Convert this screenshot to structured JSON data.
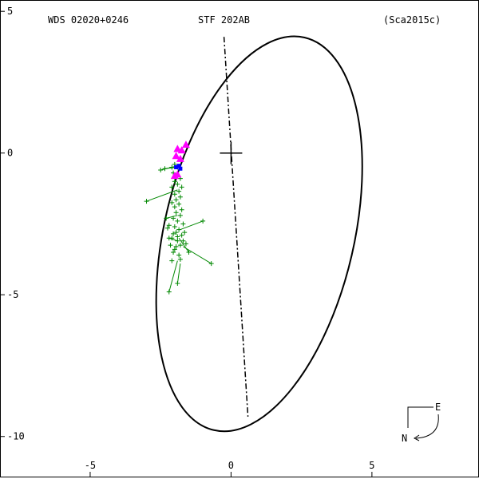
{
  "header": {
    "left": "WDS 02020+0246",
    "center": "STF 202AB",
    "right": "(Sca2015c)"
  },
  "compass": {
    "east": "E",
    "north": "N"
  },
  "colors": {
    "ellipse": "#000000",
    "observations": "#008800",
    "interferometric": "#0000ff",
    "recent": "#ff00ff"
  },
  "chart_data": {
    "type": "scatter",
    "title": "",
    "xlabel": "",
    "ylabel": "",
    "xlim": [
      -8.2,
      8.8
    ],
    "ylim": [
      -11.5,
      5.4
    ],
    "x_ticks": [
      {
        "value": -5,
        "label": "-5"
      },
      {
        "value": 0,
        "label": "0"
      },
      {
        "value": 5,
        "label": "5"
      }
    ],
    "y_ticks": [
      {
        "value": 5,
        "label": "5"
      },
      {
        "value": 0,
        "label": "0"
      },
      {
        "value": -5,
        "label": "-5"
      },
      {
        "value": -10,
        "label": "-10"
      }
    ],
    "primary": {
      "x": 0,
      "y": 0
    },
    "orbit_ellipse": {
      "cx": 1.0,
      "cy": -2.85,
      "a": 7.15,
      "b": 3.35,
      "rotation_deg": -77
    },
    "line_of_nodes": [
      [
        -0.25,
        4.1
      ],
      [
        0.6,
        -9.3
      ]
    ],
    "observations": {
      "points": [
        [
          -2.0,
          -0.4
        ],
        [
          -2.1,
          -0.5
        ],
        [
          -1.9,
          -0.5
        ],
        [
          -2.05,
          -0.7
        ],
        [
          -1.95,
          -0.8
        ],
        [
          -1.8,
          -0.9
        ],
        [
          -2.0,
          -1.0
        ],
        [
          -1.9,
          -1.1
        ],
        [
          -1.75,
          -1.2
        ],
        [
          -2.1,
          -1.2
        ],
        [
          -1.85,
          -1.35
        ],
        [
          -2.0,
          -1.45
        ],
        [
          -1.8,
          -1.55
        ],
        [
          -1.95,
          -1.65
        ],
        [
          -2.1,
          -1.75
        ],
        [
          -1.85,
          -1.8
        ],
        [
          -2.0,
          -1.9
        ],
        [
          -1.75,
          -2.0
        ],
        [
          -1.95,
          -2.1
        ],
        [
          -1.8,
          -2.2
        ],
        [
          -2.05,
          -2.3
        ],
        [
          -1.9,
          -2.4
        ],
        [
          -1.7,
          -2.5
        ],
        [
          -2.0,
          -2.6
        ],
        [
          -1.85,
          -2.7
        ],
        [
          -1.95,
          -2.8
        ],
        [
          -1.75,
          -2.9
        ],
        [
          -2.1,
          -3.0
        ],
        [
          -1.9,
          -3.1
        ],
        [
          -1.8,
          -3.25
        ],
        [
          -2.0,
          -3.4
        ],
        [
          -1.85,
          -3.6
        ],
        [
          -2.2,
          -2.55
        ],
        [
          -2.05,
          -2.85
        ],
        [
          -1.7,
          -3.1
        ],
        [
          -1.6,
          -3.2
        ],
        [
          -2.15,
          -3.25
        ],
        [
          -2.2,
          -3.0
        ],
        [
          -1.95,
          -3.3
        ],
        [
          -2.05,
          -3.5
        ],
        [
          -3.0,
          -1.7
        ],
        [
          -2.35,
          -0.55
        ],
        [
          -2.5,
          -0.6
        ],
        [
          -1.0,
          -2.4
        ],
        [
          -0.7,
          -3.9
        ],
        [
          -2.2,
          -4.9
        ],
        [
          -1.9,
          -4.6
        ],
        [
          -1.5,
          -3.5
        ],
        [
          -2.3,
          -2.3
        ],
        [
          -2.1,
          -3.8
        ],
        [
          -1.8,
          -3.75
        ],
        [
          -2.25,
          -2.65
        ],
        [
          -1.9,
          -2.95
        ],
        [
          -1.65,
          -2.8
        ]
      ],
      "segments": [
        [
          [
            -3.0,
            -1.7
          ],
          [
            -1.9,
            -1.3
          ]
        ],
        [
          [
            -2.5,
            -0.6
          ],
          [
            -1.9,
            -0.45
          ]
        ],
        [
          [
            -2.35,
            -0.55
          ],
          [
            -1.95,
            -0.5
          ]
        ],
        [
          [
            -1.0,
            -2.4
          ],
          [
            -1.8,
            -2.7
          ]
        ],
        [
          [
            -0.7,
            -3.9
          ],
          [
            -1.7,
            -3.3
          ]
        ],
        [
          [
            -2.2,
            -4.9
          ],
          [
            -1.9,
            -3.8
          ]
        ],
        [
          [
            -1.9,
            -4.6
          ],
          [
            -1.8,
            -3.9
          ]
        ],
        [
          [
            -1.5,
            -3.5
          ],
          [
            -1.85,
            -3.0
          ]
        ],
        [
          [
            -2.3,
            -2.3
          ],
          [
            -1.9,
            -2.2
          ]
        ],
        [
          [
            -2.2,
            -3.0
          ],
          [
            -1.9,
            -3.1
          ]
        ]
      ]
    },
    "interferometric": [
      [
        -1.85,
        -0.45
      ],
      [
        -1.95,
        -0.5
      ],
      [
        -1.8,
        -0.55
      ]
    ],
    "recent": [
      [
        -1.9,
        0.15
      ],
      [
        -1.75,
        0.1
      ],
      [
        -1.95,
        -0.1
      ],
      [
        -1.8,
        -0.2
      ],
      [
        -1.9,
        -0.75
      ],
      [
        -2.0,
        -0.8
      ],
      [
        -1.6,
        0.3
      ]
    ]
  }
}
